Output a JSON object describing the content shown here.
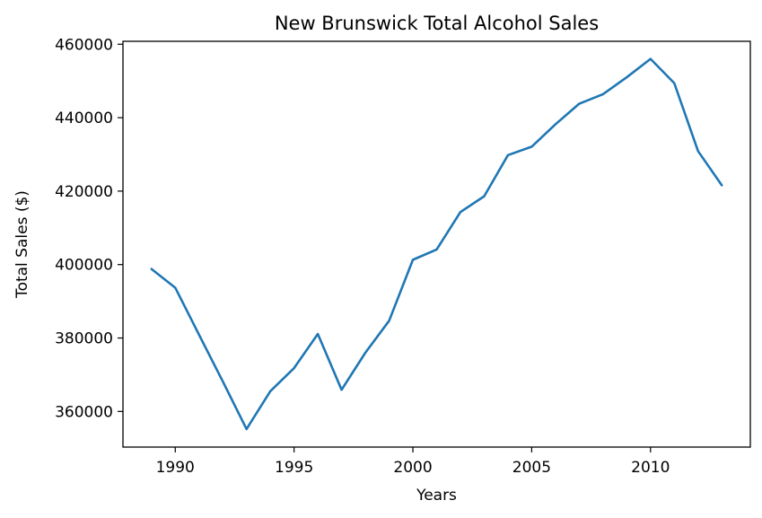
{
  "chart_data": {
    "type": "line",
    "title": "New Brunswick Total Alcohol Sales",
    "xlabel": "Years",
    "ylabel": "Total Sales ($)",
    "xlim": [
      1987.8,
      2014.2
    ],
    "ylim": [
      350300,
      460800
    ],
    "x_ticks": [
      1990,
      1995,
      2000,
      2005,
      2010
    ],
    "y_ticks": [
      360000,
      380000,
      400000,
      420000,
      440000,
      460000
    ],
    "grid": false,
    "series": [
      {
        "color": "#1f77b4",
        "x": [
          1989,
          1990,
          1991,
          1992,
          1993,
          1994,
          1995,
          1996,
          1997,
          1998,
          1999,
          2000,
          2001,
          2002,
          2003,
          2004,
          2005,
          2006,
          2007,
          2008,
          2009,
          2010,
          2011,
          2012,
          2013
        ],
        "y": [
          398800,
          393700,
          380900,
          368200,
          355200,
          365500,
          371800,
          381100,
          365900,
          376000,
          384700,
          401300,
          404100,
          414300,
          418600,
          429800,
          432100,
          438200,
          443800,
          446400,
          451000,
          456000,
          449400,
          430900,
          421600
        ]
      }
    ]
  }
}
